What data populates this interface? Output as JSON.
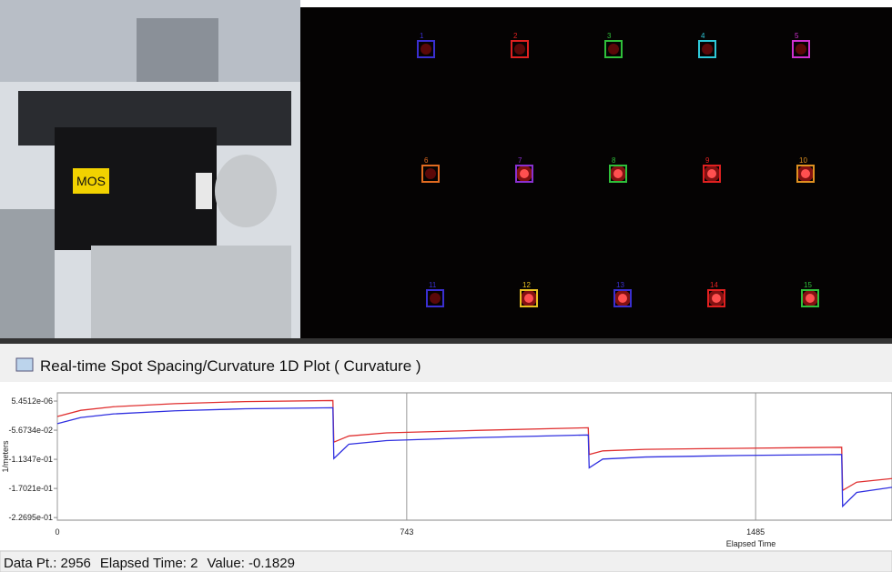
{
  "photo": {
    "label": "MOS"
  },
  "spots": {
    "items": [
      {
        "label": "1",
        "color": "#3a2fd0",
        "bright": false
      },
      {
        "label": "2",
        "color": "#e02020",
        "bright": false
      },
      {
        "label": "3",
        "color": "#2fbf3a",
        "bright": false
      },
      {
        "label": "4",
        "color": "#2fc8d8",
        "bright": false
      },
      {
        "label": "5",
        "color": "#d030d0",
        "bright": false
      },
      {
        "label": "6",
        "color": "#e06a20",
        "bright": false
      },
      {
        "label": "7",
        "color": "#8a30d0",
        "bright": true
      },
      {
        "label": "8",
        "color": "#2fbf3a",
        "bright": true
      },
      {
        "label": "9",
        "color": "#e02020",
        "bright": true
      },
      {
        "label": "10",
        "color": "#e09020",
        "bright": true
      },
      {
        "label": "11",
        "color": "#3a2fd0",
        "bright": false
      },
      {
        "label": "12",
        "color": "#e8c020",
        "bright": true
      },
      {
        "label": "13",
        "color": "#3a2fd0",
        "bright": true
      },
      {
        "label": "14",
        "color": "#e02020",
        "bright": true
      },
      {
        "label": "15",
        "color": "#2fbf3a",
        "bright": true
      }
    ]
  },
  "window": {
    "title": "Real-time Spot Spacing/Curvature 1D Plot ( Curvature )"
  },
  "plot": {
    "type": "line",
    "ylabel": "1/meters",
    "xlabel": "Elapsed Time",
    "xlim": [
      0,
      1775
    ],
    "ylim": [
      -0.232,
      0.016
    ],
    "xticks": [
      0,
      743,
      1485
    ],
    "yticks": [
      {
        "value": 5.4512e-06,
        "label": "5.4512e-06"
      },
      {
        "value": -0.056734,
        "label": "-5.6734e-02"
      },
      {
        "value": -0.11347,
        "label": "-1.1347e-01"
      },
      {
        "value": -0.17021,
        "label": "-1.7021e-01"
      },
      {
        "value": -0.22695,
        "label": "-2.2695e-01"
      }
    ],
    "grid": "x",
    "series": [
      {
        "color": "#e03030",
        "x": [
          0,
          50,
          120,
          250,
          400,
          586,
          588,
          620,
          700,
          900,
          1129,
          1131,
          1160,
          1250,
          1450,
          1668,
          1670,
          1700,
          1775
        ],
        "values": [
          -0.03,
          -0.018,
          -0.011,
          -0.005,
          -0.001,
          0.001,
          -0.08,
          -0.068,
          -0.062,
          -0.057,
          -0.052,
          -0.104,
          -0.097,
          -0.094,
          -0.092,
          -0.09,
          -0.174,
          -0.158,
          -0.151
        ]
      },
      {
        "color": "#3030e0",
        "x": [
          0,
          50,
          120,
          250,
          400,
          586,
          588,
          620,
          700,
          900,
          1129,
          1131,
          1160,
          1250,
          1450,
          1668,
          1670,
          1700,
          1775
        ],
        "values": [
          -0.044,
          -0.032,
          -0.025,
          -0.019,
          -0.015,
          -0.013,
          -0.112,
          -0.084,
          -0.077,
          -0.071,
          -0.066,
          -0.13,
          -0.113,
          -0.109,
          -0.106,
          -0.104,
          -0.205,
          -0.178,
          -0.168
        ]
      }
    ]
  },
  "status": {
    "fields": [
      "Data Pt.: 2956",
      "Elapsed Time: 2",
      "Value: -0.1829"
    ]
  }
}
